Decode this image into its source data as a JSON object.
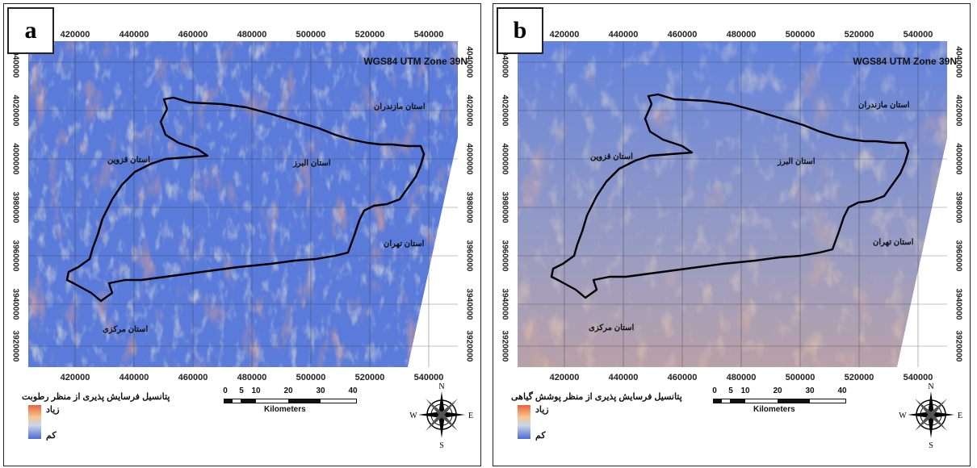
{
  "panels": [
    {
      "letter": "a",
      "crs": "WGS84 UTM Zone 39N",
      "x_ticks": [
        "420000",
        "440000",
        "460000",
        "480000",
        "500000",
        "520000",
        "540000"
      ],
      "y_ticks": [
        "4040000",
        "4020000",
        "4000000",
        "3980000",
        "3960000",
        "3940000",
        "3920000"
      ],
      "provinces": {
        "mazandaran": "استان مازندران",
        "qazvin": "استان قزوین",
        "alborz": "استان البرز",
        "tehran": "استان تهران",
        "markazi": "استان مرکزی"
      },
      "legend": {
        "title": "پتانسیل فرسایش پذیری از منظر رطوبت",
        "high": "زیاد",
        "low": "کم"
      },
      "scale": {
        "ticks": [
          "0",
          "5",
          "10",
          "20",
          "30",
          "40"
        ],
        "unit": "Kilometers"
      },
      "compass": {
        "n": "N",
        "s": "S",
        "e": "E",
        "w": "W"
      },
      "colors": {
        "low": "#4b6bd6",
        "mid": "#f4e3b8",
        "high": "#e05238"
      }
    },
    {
      "letter": "b",
      "crs": "WGS84 UTM Zone 39N",
      "x_ticks": [
        "420000",
        "440000",
        "460000",
        "480000",
        "500000",
        "520000",
        "540000"
      ],
      "y_ticks": [
        "4040000",
        "4020000",
        "4000000",
        "3980000",
        "3960000",
        "3940000",
        "3920000"
      ],
      "provinces": {
        "mazandaran": "استان مازندران",
        "qazvin": "استان قزوین",
        "alborz": "استان البرز",
        "tehran": "استان تهران",
        "markazi": "استان مرکزی"
      },
      "legend": {
        "title": "پتانسیل فرسایش پذیری از منظر پوشش گیاهی",
        "high": "زیاد",
        "low": "کم"
      },
      "scale": {
        "ticks": [
          "0",
          "5",
          "10",
          "20",
          "30",
          "40"
        ],
        "unit": "Kilometers"
      },
      "compass": {
        "n": "N",
        "s": "S",
        "e": "E",
        "w": "W"
      },
      "colors": {
        "low": "#4b6bd6",
        "mid": "#f4e3b8",
        "high": "#e05238"
      }
    }
  ]
}
